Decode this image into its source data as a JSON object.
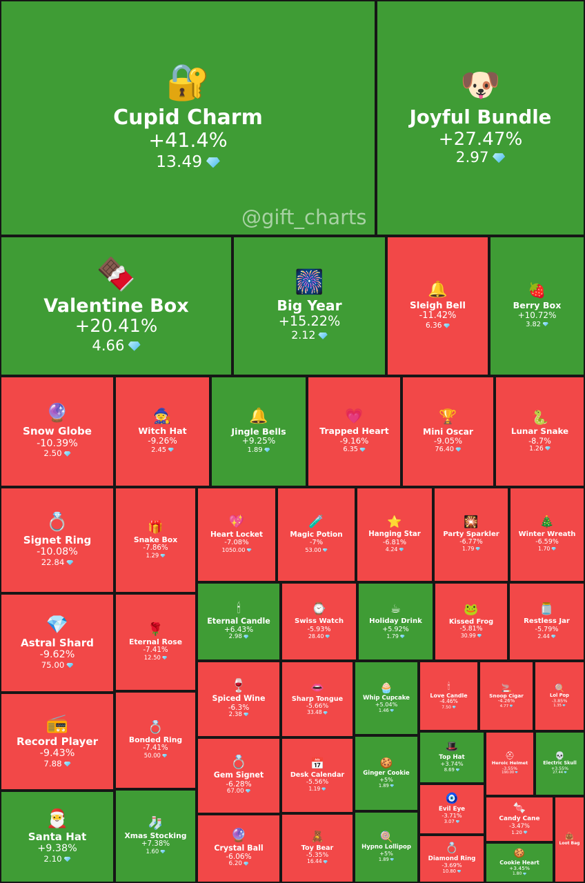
{
  "watermark": "@gift_charts",
  "colors": {
    "gain": "#3f9c35",
    "loss": "#f24848",
    "gap": "#161616",
    "diamond": "#43b6e8"
  },
  "chart_data": {
    "type": "treemap",
    "value_unit": "TON (diamond icon)",
    "items": [
      {
        "name": "Cupid Charm",
        "change": "+41.4%",
        "price": "13.49",
        "icon": "golden-heart-lock-icon"
      },
      {
        "name": "Joyful Bundle",
        "change": "+27.47%",
        "price": "2.97",
        "icon": "dog-gift-bag-icon"
      },
      {
        "name": "Valentine Box",
        "change": "+20.41%",
        "price": "4.66",
        "icon": "chocolate-box-icon"
      },
      {
        "name": "Big Year",
        "change": "+15.22%",
        "price": "2.12",
        "icon": "2025-icon"
      },
      {
        "name": "Sleigh Bell",
        "change": "-11.42%",
        "price": "6.36",
        "icon": "bell-icon"
      },
      {
        "name": "Berry Box",
        "change": "+10.72%",
        "price": "3.82",
        "icon": "berry-box-icon"
      },
      {
        "name": "Snow Globe",
        "change": "-10.39%",
        "price": "2.50",
        "icon": "snow-globe-icon"
      },
      {
        "name": "Witch Hat",
        "change": "-9.26%",
        "price": "2.45",
        "icon": "witch-hat-icon"
      },
      {
        "name": "Jingle Bells",
        "change": "+9.25%",
        "price": "1.89",
        "icon": "jingle-bells-icon"
      },
      {
        "name": "Trapped Heart",
        "change": "-9.16%",
        "price": "6.35",
        "icon": "trapped-heart-icon"
      },
      {
        "name": "Mini Oscar",
        "change": "-9.05%",
        "price": "76.40",
        "icon": "oscar-statue-icon"
      },
      {
        "name": "Lunar Snake",
        "change": "-8.7%",
        "price": "1.26",
        "icon": "snake-icon"
      },
      {
        "name": "Signet Ring",
        "change": "-10.08%",
        "price": "22.84",
        "icon": "ring-icon"
      },
      {
        "name": "Snake Box",
        "change": "-7.86%",
        "price": "1.29",
        "icon": "gift-box-icon"
      },
      {
        "name": "Heart Locket",
        "change": "-7.08%",
        "price": "1050.00",
        "icon": "heart-locket-icon"
      },
      {
        "name": "Magic Potion",
        "change": "-7%",
        "price": "53.00",
        "icon": "potion-icon"
      },
      {
        "name": "Hanging Star",
        "change": "-6.81%",
        "price": "4.24",
        "icon": "star-icon"
      },
      {
        "name": "Party Sparkler",
        "change": "-6.77%",
        "price": "1.79",
        "icon": "sparkler-icon"
      },
      {
        "name": "Winter Wreath",
        "change": "-6.59%",
        "price": "1.70",
        "icon": "wreath-icon"
      },
      {
        "name": "Astral Shard",
        "change": "-9.62%",
        "price": "75.00",
        "icon": "crystal-icon"
      },
      {
        "name": "Eternal Rose",
        "change": "-7.41%",
        "price": "12.50",
        "icon": "rose-icon"
      },
      {
        "name": "Eternal Candle",
        "change": "+6.43%",
        "price": "2.98",
        "icon": "candle-icon"
      },
      {
        "name": "Swiss Watch",
        "change": "-5.93%",
        "price": "28.40",
        "icon": "watch-icon"
      },
      {
        "name": "Holiday Drink",
        "change": "+5.92%",
        "price": "1.79",
        "icon": "mug-icon"
      },
      {
        "name": "Kissed Frog",
        "change": "-5.81%",
        "price": "30.99",
        "icon": "frog-icon"
      },
      {
        "name": "Restless Jar",
        "change": "-5.79%",
        "price": "2.44",
        "icon": "jar-icon"
      },
      {
        "name": "Record Player",
        "change": "-9.43%",
        "price": "7.88",
        "icon": "record-player-icon"
      },
      {
        "name": "Bonded Ring",
        "change": "-7.41%",
        "price": "50.00",
        "icon": "ring-icon"
      },
      {
        "name": "Spiced Wine",
        "change": "-6.3%",
        "price": "2.38",
        "icon": "wine-glass-icon"
      },
      {
        "name": "Sharp Tongue",
        "change": "-5.66%",
        "price": "33.48",
        "icon": "lips-icon"
      },
      {
        "name": "Whip Cupcake",
        "change": "+5.04%",
        "price": "1.46",
        "icon": "cupcake-icon"
      },
      {
        "name": "Love Candle",
        "change": "-4.46%",
        "price": "7.50",
        "icon": "candle-icon"
      },
      {
        "name": "Snoop Cigar",
        "change": "-4.26%",
        "price": "4.77",
        "icon": "cigar-icon"
      },
      {
        "name": "Lol Pop",
        "change": "-3.85%",
        "price": "1.35",
        "icon": "lollipop-icon"
      },
      {
        "name": "Gem Signet",
        "change": "-6.28%",
        "price": "67.00",
        "icon": "gem-ring-icon"
      },
      {
        "name": "Desk Calendar",
        "change": "-5.56%",
        "price": "1.19",
        "icon": "calendar-icon"
      },
      {
        "name": "Ginger Cookie",
        "change": "+5%",
        "price": "1.89",
        "icon": "gingerbread-icon"
      },
      {
        "name": "Top Hat",
        "change": "+3.74%",
        "price": "8.69",
        "icon": "top-hat-icon"
      },
      {
        "name": "Heroic Helmet",
        "change": "-3.55%",
        "price": "190.00",
        "icon": "helmet-icon"
      },
      {
        "name": "Electric Skull",
        "change": "+3.55%",
        "price": "27.44",
        "icon": "skull-icon"
      },
      {
        "name": "Evil Eye",
        "change": "-3.71%",
        "price": "3.07",
        "icon": "evil-eye-icon"
      },
      {
        "name": "Candy Cane",
        "change": "-3.47%",
        "price": "1.20",
        "icon": "candy-cane-icon"
      },
      {
        "name": "Loot Bag",
        "change": "",
        "price": "",
        "icon": "bag-icon"
      },
      {
        "name": "Santa Hat",
        "change": "+9.38%",
        "price": "2.10",
        "icon": "santa-hat-icon"
      },
      {
        "name": "Xmas Stocking",
        "change": "+7.38%",
        "price": "1.60",
        "icon": "stocking-icon"
      },
      {
        "name": "Crystal Ball",
        "change": "-6.06%",
        "price": "6.20",
        "icon": "crystal-ball-icon"
      },
      {
        "name": "Toy Bear",
        "change": "-5.35%",
        "price": "16.44",
        "icon": "teddy-bear-icon"
      },
      {
        "name": "Hypno Lollipop",
        "change": "+5%",
        "price": "1.89",
        "icon": "lollipop-icon"
      },
      {
        "name": "Diamond Ring",
        "change": "-3.69%",
        "price": "10.80",
        "icon": "diamond-ring-icon"
      },
      {
        "name": "Cookie Heart",
        "change": "+3.45%",
        "price": "1.80",
        "icon": "cookie-icon"
      }
    ]
  }
}
